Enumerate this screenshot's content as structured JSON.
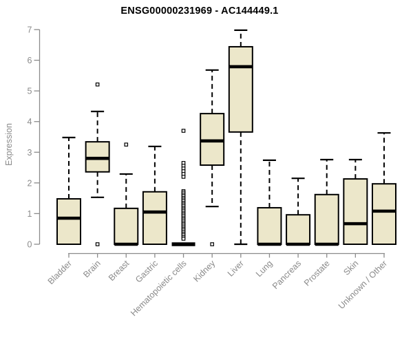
{
  "chart_data": {
    "type": "boxplot",
    "title": "ENSG00000231969 - AC144449.1",
    "xlabel": "",
    "ylabel": "Expression",
    "ylim": [
      0,
      7
    ],
    "yticks": [
      0,
      1,
      2,
      3,
      4,
      5,
      6,
      7
    ],
    "grid": false,
    "legend": "none",
    "categories": [
      "Bladder",
      "Brain",
      "Breast",
      "Gastric",
      "Hematopoietic cells",
      "Kidney",
      "Liver",
      "Lung",
      "Pancreas",
      "Prostate",
      "Skin",
      "Unknown / Other"
    ],
    "boxes": [
      {
        "category": "Bladder",
        "whisker_low": 0,
        "q1": 0,
        "median": 0.85,
        "q3": 1.48,
        "whisker_high": 3.48,
        "outliers": []
      },
      {
        "category": "Brain",
        "whisker_low": 1.53,
        "q1": 2.36,
        "median": 2.8,
        "q3": 3.34,
        "whisker_high": 4.33,
        "outliers": [
          5.21,
          0
        ]
      },
      {
        "category": "Breast",
        "whisker_low": 0,
        "q1": 0,
        "median": 0,
        "q3": 1.17,
        "whisker_high": 2.29,
        "outliers": [
          3.25
        ]
      },
      {
        "category": "Gastric",
        "whisker_low": 0,
        "q1": 0,
        "median": 1.05,
        "q3": 1.71,
        "whisker_high": 3.19,
        "outliers": []
      },
      {
        "category": "Hematopoietic cells",
        "whisker_low": 0,
        "q1": 0,
        "median": 0,
        "q3": 0,
        "whisker_high": 0,
        "outliers": [
          3.7,
          2.65,
          2.56,
          2.47,
          2.38,
          2.29,
          2.2,
          1.73,
          1.68,
          1.62,
          1.57,
          1.51,
          1.46,
          1.41,
          1.35,
          1.3,
          1.25,
          1.19,
          1.14,
          1.09,
          1.03,
          0.98,
          0.93,
          0.87,
          0.82,
          0.77,
          0.71,
          0.66,
          0.61,
          0.55,
          0.5,
          0.45,
          0.39,
          0.34,
          0.29,
          0.23,
          0.18
        ]
      },
      {
        "category": "Kidney",
        "whisker_low": 1.23,
        "q1": 2.58,
        "median": 3.37,
        "q3": 4.26,
        "whisker_high": 5.68,
        "outliers": [
          0
        ]
      },
      {
        "category": "Liver",
        "whisker_low": 0,
        "q1": 3.66,
        "median": 5.79,
        "q3": 6.44,
        "whisker_high": 6.98,
        "outliers": []
      },
      {
        "category": "Lung",
        "whisker_low": 0,
        "q1": 0,
        "median": 0,
        "q3": 1.19,
        "whisker_high": 2.74,
        "outliers": []
      },
      {
        "category": "Pancreas",
        "whisker_low": 0,
        "q1": 0,
        "median": 0,
        "q3": 0.96,
        "whisker_high": 2.15,
        "outliers": []
      },
      {
        "category": "Prostate",
        "whisker_low": 0,
        "q1": 0,
        "median": 0,
        "q3": 1.62,
        "whisker_high": 2.76,
        "outliers": []
      },
      {
        "category": "Skin",
        "whisker_low": 0,
        "q1": 0,
        "median": 0.67,
        "q3": 2.13,
        "whisker_high": 2.76,
        "outliers": []
      },
      {
        "category": "Unknown / Other",
        "whisker_low": 0,
        "q1": 0,
        "median": 1.08,
        "q3": 1.97,
        "whisker_high": 3.63,
        "outliers": []
      }
    ],
    "colors": {
      "box_fill": "#ECE7CA",
      "box_border": "#000000",
      "median": "#000000",
      "whisker": "#000000",
      "outlier": "#000000",
      "axis": "#8a8a8a",
      "tick_label": "#8a8a8a",
      "title": "#000000",
      "background": "#ffffff"
    }
  }
}
